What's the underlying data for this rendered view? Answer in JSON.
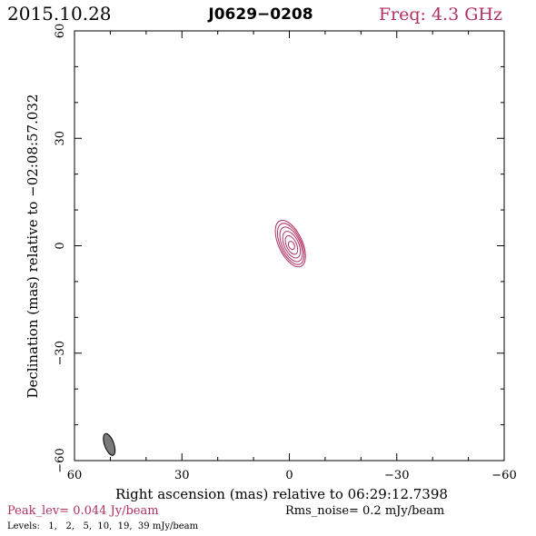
{
  "header": {
    "date": "2015.10.28",
    "source": "J0629−0208",
    "freq": "Freq: 4.3 GHz"
  },
  "footer": {
    "peak": "Peak_lev=  0.044 Jy/beam",
    "rms": "Rms_noise=   0.2 mJy/beam",
    "levels": "Levels:   1,   2,   5,  10,  19,  39 mJy/beam"
  },
  "colors": {
    "contour": "#b03060",
    "axis": "#000000",
    "beam": "#7a7a7a"
  },
  "chart_data": {
    "type": "contour",
    "xlabel": "Right ascension (mas) relative to 06:29:12.7398",
    "ylabel": "Declination (mas) relative to −02:08:57.032",
    "xlim": [
      60,
      -60
    ],
    "ylim": [
      -60,
      60
    ],
    "x_ticks": [
      60,
      30,
      0,
      -30,
      -60
    ],
    "y_ticks": [
      -60,
      -30,
      0,
      30,
      60
    ],
    "x_tick_labels": [
      "60",
      "30",
      "0",
      "−30",
      "−60"
    ],
    "y_tick_labels": [
      "−60",
      "−30",
      "0",
      "30",
      "60"
    ],
    "peak_jy_per_beam": 0.044,
    "rms_noise_mjy_per_beam": 0.2,
    "levels_mjy_per_beam": [
      1,
      2,
      5,
      10,
      19,
      39
    ],
    "contours": [
      {
        "level": 1,
        "ra": -0.3,
        "dec": 0.6,
        "semi_major": 7.0,
        "semi_minor": 3.3,
        "angle": 25
      },
      {
        "level": 2,
        "ra": -0.4,
        "dec": 0.5,
        "semi_major": 6.2,
        "semi_minor": 2.9,
        "angle": 25
      },
      {
        "level": 5,
        "ra": -0.5,
        "dec": 0.4,
        "semi_major": 5.2,
        "semi_minor": 2.5,
        "angle": 25
      },
      {
        "level": 10,
        "ra": -0.6,
        "dec": 0.3,
        "semi_major": 4.0,
        "semi_minor": 2.0,
        "angle": 25
      },
      {
        "level": 19,
        "ra": -0.6,
        "dec": 0.2,
        "semi_major": 2.8,
        "semi_minor": 1.4,
        "angle": 25
      },
      {
        "level": 39,
        "ra": -0.6,
        "dec": 0.1,
        "semi_major": 1.2,
        "semi_minor": 0.8,
        "angle": 25
      }
    ],
    "beam": {
      "ra": 50.3,
      "dec": -55.5,
      "semi_major": 3.2,
      "semi_minor": 1.3,
      "angle": 20
    }
  }
}
